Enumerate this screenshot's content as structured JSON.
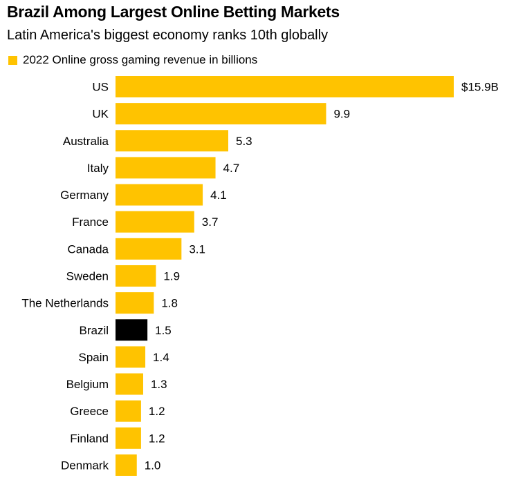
{
  "chart_data": {
    "type": "bar",
    "orientation": "horizontal",
    "title": "Brazil Among Largest Online Betting Markets",
    "subtitle": "Latin America's biggest economy ranks 10th globally",
    "legend": [
      {
        "label": "2022 Online gross gaming revenue in billions",
        "color": "#FFC300"
      }
    ],
    "legend_position": "top-left",
    "categories": [
      "US",
      "UK",
      "Australia",
      "Italy",
      "Germany",
      "France",
      "Canada",
      "Sweden",
      "The Netherlands",
      "Brazil",
      "Spain",
      "Belgium",
      "Greece",
      "Finland",
      "Denmark"
    ],
    "values": [
      15.9,
      9.9,
      5.3,
      4.7,
      4.1,
      3.7,
      3.1,
      1.9,
      1.8,
      1.5,
      1.4,
      1.3,
      1.2,
      1.2,
      1.0
    ],
    "value_labels": [
      "$15.9B",
      "9.9",
      "5.3",
      "4.7",
      "4.1",
      "3.7",
      "3.1",
      "1.9",
      "1.8",
      "1.5",
      "1.4",
      "1.3",
      "1.2",
      "1.2",
      "1.0"
    ],
    "highlight": "Brazil",
    "colors": {
      "default": "#FFC300",
      "highlight": "#000000"
    },
    "xlabel": "",
    "ylabel": "",
    "xlim": [
      0,
      15.9
    ],
    "grid": false
  }
}
